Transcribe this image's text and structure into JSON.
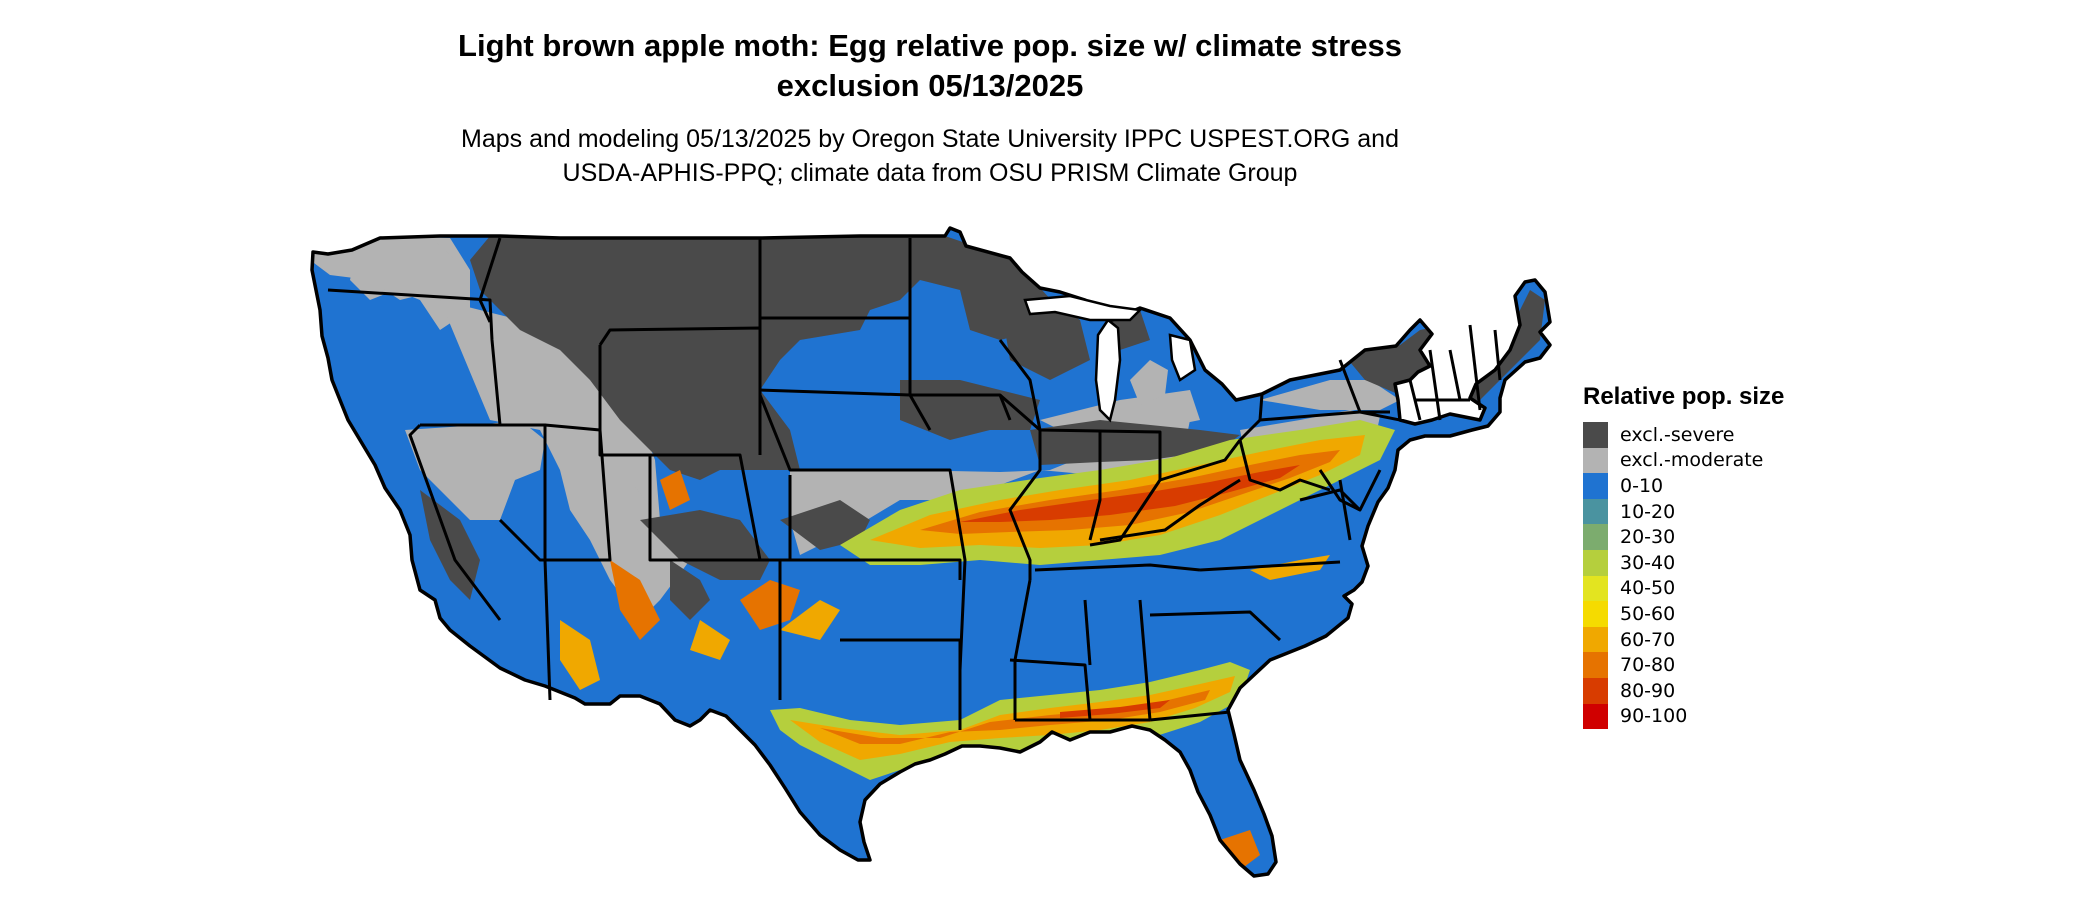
{
  "title": {
    "line1": "Light brown apple moth: Egg relative pop. size w/ climate stress",
    "line2": "exclusion 05/13/2025"
  },
  "subtitle": {
    "line1": "Maps and modeling 05/13/2025 by Oregon State University IPPC USPEST.ORG and",
    "line2": "USDA-APHIS-PPQ; climate data from OSU PRISM Climate Group"
  },
  "legend": {
    "title": "Relative pop. size",
    "items": [
      {
        "label": "excl.-severe",
        "color": "#4a4a4a"
      },
      {
        "label": "excl.-moderate",
        "color": "#b3b3b3"
      },
      {
        "label": "0-10",
        "color": "#1f73d1"
      },
      {
        "label": "10-20",
        "color": "#4a93a0"
      },
      {
        "label": "20-30",
        "color": "#7cac6e"
      },
      {
        "label": "30-40",
        "color": "#b5cf3d"
      },
      {
        "label": "40-50",
        "color": "#e3e420"
      },
      {
        "label": "50-60",
        "color": "#f5db00"
      },
      {
        "label": "60-70",
        "color": "#f0a800"
      },
      {
        "label": "70-80",
        "color": "#e67300"
      },
      {
        "label": "80-90",
        "color": "#d83c00"
      },
      {
        "label": "90-100",
        "color": "#d00000"
      }
    ]
  }
}
